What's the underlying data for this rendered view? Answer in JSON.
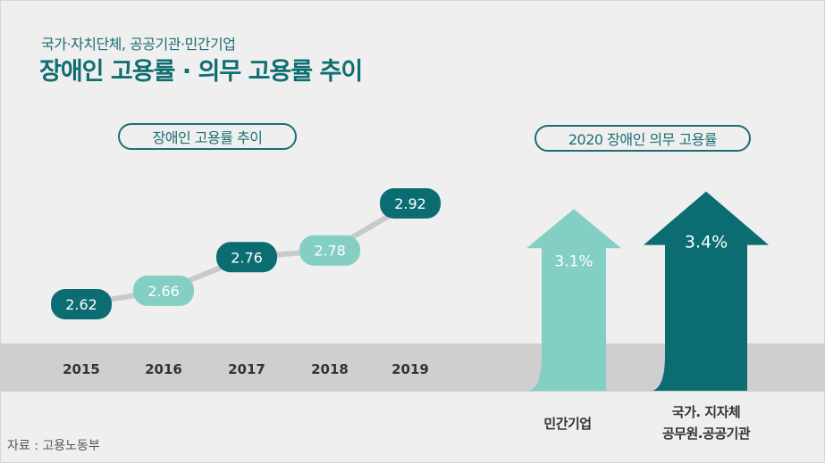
{
  "header": {
    "subtitle": "국가·자치단체, 공공기관·민간기업",
    "title": "장애인 고용률 · 의무 고용률 추이"
  },
  "source": "자료 : 고용노동부",
  "colors": {
    "dark_teal": "#0b6d72",
    "light_teal": "#83cfc4",
    "line": "#c9c9c9",
    "band": "#cfcfcf"
  },
  "chart_data": [
    {
      "type": "line",
      "title": "장애인 고용률 추이",
      "categories": [
        "2015",
        "2016",
        "2017",
        "2018",
        "2019"
      ],
      "values": [
        2.62,
        2.66,
        2.76,
        2.78,
        2.92
      ],
      "value_labels": [
        "2.62",
        "2.66",
        "2.76",
        "2.78",
        "2.92"
      ],
      "ylim": [
        2.55,
        2.95
      ],
      "label_style": [
        "dark",
        "light",
        "dark",
        "light",
        "dark"
      ]
    },
    {
      "type": "bar",
      "title": "2020 장애인 의무 고용률",
      "categories": [
        "민간기업",
        "국가. 지자체\n공무원.공공기관"
      ],
      "category_lines": [
        [
          "민간기업"
        ],
        [
          "국가. 지자체",
          "공무원.공공기관"
        ]
      ],
      "values": [
        3.1,
        3.4
      ],
      "value_labels": [
        "3.1%",
        "3.4%"
      ],
      "bar_style": [
        "light",
        "dark"
      ]
    }
  ]
}
